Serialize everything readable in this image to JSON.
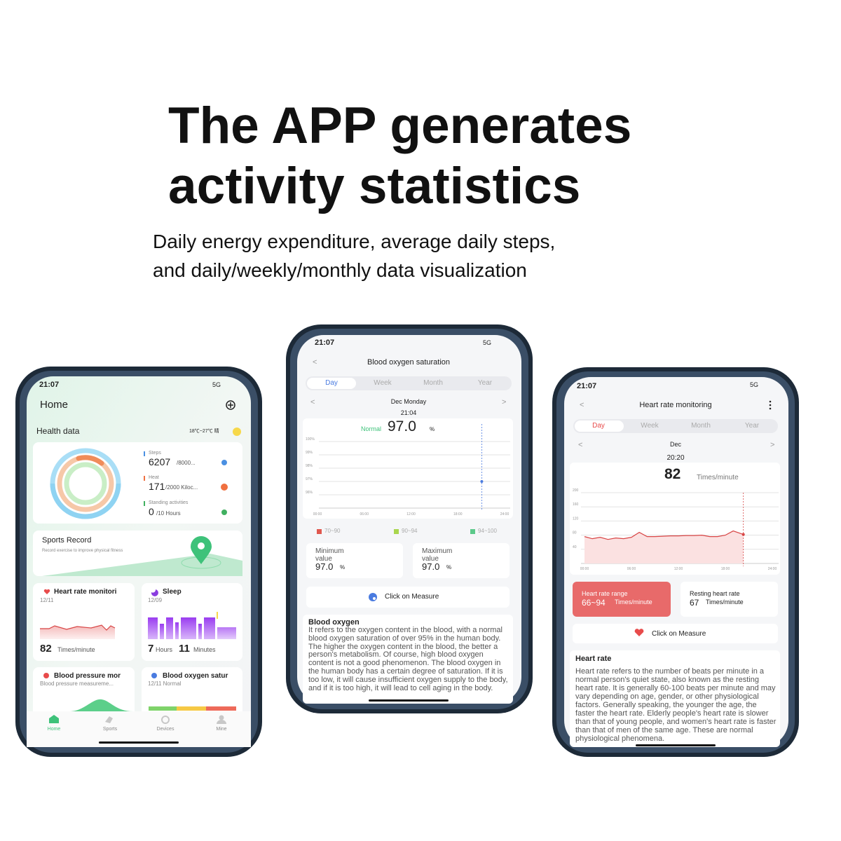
{
  "header": {
    "title_line1": "The APP generates",
    "title_line2": "activity statistics",
    "subtitle_line1": "Daily energy expenditure, average daily steps,",
    "subtitle_line2": "and daily/weekly/monthly data visualization"
  },
  "home": {
    "time": "21:07",
    "network": "5G",
    "title": "Home",
    "section": "Health data",
    "weather": "18℃~27℃ 晴",
    "steps_label": "Steps",
    "steps": 6207,
    "steps_goal": "/8000...",
    "heat_label": "Heat",
    "heat": 171,
    "heat_goal": "/2000 Kiloc...",
    "standing_label": "Standing activities",
    "standing": 0,
    "standing_goal": "/10 Hours",
    "sports_title": "Sports Record",
    "sports_sub": "Record exercise to improve physical fitness",
    "hr_title": "Heart rate monitori",
    "hr_date": "12/11",
    "hr_value": 82,
    "hr_unit": "Times/minute",
    "sleep_title": "Sleep",
    "sleep_date": "12/09",
    "sleep_hours": 7,
    "hours_unit": "Hours",
    "sleep_minutes": 11,
    "minutes_unit": "Minutes",
    "bp_title": "Blood pressure mor",
    "bp_sub": "Blood pressure measureme...",
    "ox_title": "Blood oxygen satur",
    "ox_sub": "12/11 Normal",
    "tabs": [
      "Home",
      "Sports",
      "Devices",
      "Mine"
    ]
  },
  "oxygen": {
    "time": "21:07",
    "network": "5G",
    "title": "Blood oxygen saturation",
    "tabs": [
      "Day",
      "Week",
      "Month",
      "Year"
    ],
    "date": "Dec Monday",
    "clock": "21:04",
    "status": "Normal",
    "reading": "97.0",
    "unit": "%",
    "chart": {
      "ylim": [
        95,
        100
      ],
      "yticks": [
        {
          "value": 100,
          "label": "100%"
        },
        {
          "value": 99,
          "label": "99%"
        },
        {
          "value": 98,
          "label": "98%"
        },
        {
          "value": 97,
          "label": "97%"
        },
        {
          "value": 96,
          "label": "96%"
        }
      ],
      "xlim": [
        0,
        24
      ],
      "xticks": [
        {
          "value": 0,
          "label": "00:00"
        },
        {
          "value": 6,
          "label": "06:00"
        },
        {
          "value": 12,
          "label": "12:00"
        },
        {
          "value": 18,
          "label": "18:00"
        },
        {
          "value": 24,
          "label": "24:00"
        }
      ],
      "x": [
        21.07
      ],
      "values": [
        97
      ]
    },
    "legend": [
      "70~90",
      "90~94",
      "94~100"
    ],
    "min_label": "Minimum value",
    "min_value": "97.0",
    "max_label": "Maximum value",
    "max_value": "97.0",
    "measure": "Click on Measure",
    "info_title": "Blood oxygen",
    "info_text": "It refers to the oxygen content in the blood, with a normal blood oxygen saturation of over 95% in the human body. The higher the oxygen content in the blood, the better a person's metabolism. Of course, high blood oxygen content is not a good phenomenon. The blood oxygen in the human body has a certain degree of saturation. If it is too low, it will cause insufficient oxygen supply to the body, and if it is too high, it will lead to cell aging in the body."
  },
  "heart": {
    "time": "21:07",
    "network": "5G",
    "title": "Heart rate monitoring",
    "tabs": [
      "Day",
      "Week",
      "Month",
      "Year"
    ],
    "date": "Dec",
    "clock": "20:20",
    "reading": 82,
    "unit": "Times/minute",
    "chart": {
      "ylim": [
        0,
        200
      ],
      "yticks": [
        200,
        160,
        120,
        80,
        40
      ],
      "xlim": [
        0,
        24
      ],
      "xticks": [
        {
          "value": 0,
          "label": "00:00"
        },
        {
          "value": 6,
          "label": "06:00"
        },
        {
          "value": 12,
          "label": "12:00"
        },
        {
          "value": 18,
          "label": "18:00"
        },
        {
          "value": 24,
          "label": "24:00"
        }
      ],
      "x": [
        0,
        1,
        2,
        3,
        4,
        5,
        6,
        7,
        8,
        9,
        10,
        11,
        12,
        13,
        14,
        15,
        16,
        17,
        18,
        19,
        20.3
      ],
      "values": [
        76,
        70,
        74,
        68,
        72,
        70,
        74,
        88,
        76,
        76,
        77,
        78,
        78,
        79,
        79,
        80,
        76,
        76,
        80,
        92,
        82
      ]
    },
    "range_label": "Heart rate range",
    "range_value": "66~94",
    "range_unit": "Times/minute",
    "resting_label": "Resting heart rate",
    "resting_value": 67,
    "resting_unit": "Times/minute",
    "measure": "Click on Measure",
    "info_title": "Heart rate",
    "info_text": "Heart rate refers to the number of beats per minute in a normal person's quiet state, also known as the resting heart rate. It is generally 60-100 beats per minute and may vary depending on age, gender, or other physiological factors. Generally speaking, the younger the age, the faster the heart rate. Elderly people's heart rate is slower than that of young people, and women's heart rate is faster than that of men of the same age. These are normal physiological phenomena."
  }
}
